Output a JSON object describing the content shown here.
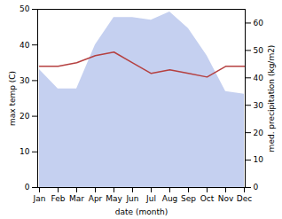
{
  "chart_data": {
    "type": "line",
    "xlabel": "date (month)",
    "ylabel": "max temp (C)",
    "y2label": "med. precipitation (kg/m2)",
    "categories": [
      "Jan",
      "Feb",
      "Mar",
      "Apr",
      "May",
      "Jun",
      "Jul",
      "Aug",
      "Sep",
      "Oct",
      "Nov",
      "Dec"
    ],
    "series": [
      {
        "type": "area",
        "axis": "y2",
        "color": "#c5d0f0",
        "values": [
          43,
          36,
          36,
          52,
          62,
          62,
          61,
          64,
          58,
          48,
          35,
          34
        ]
      },
      {
        "type": "line",
        "color": "#b54040",
        "values": [
          34,
          34,
          35,
          37,
          38,
          35,
          32,
          33,
          32,
          31,
          34,
          34
        ]
      }
    ],
    "ylim": [
      0,
      50
    ],
    "yticks": [
      0,
      10,
      20,
      30,
      40,
      50
    ],
    "y2lim": [
      0,
      65
    ],
    "y2ticks": [
      0,
      10,
      20,
      30,
      40,
      50,
      60
    ]
  }
}
